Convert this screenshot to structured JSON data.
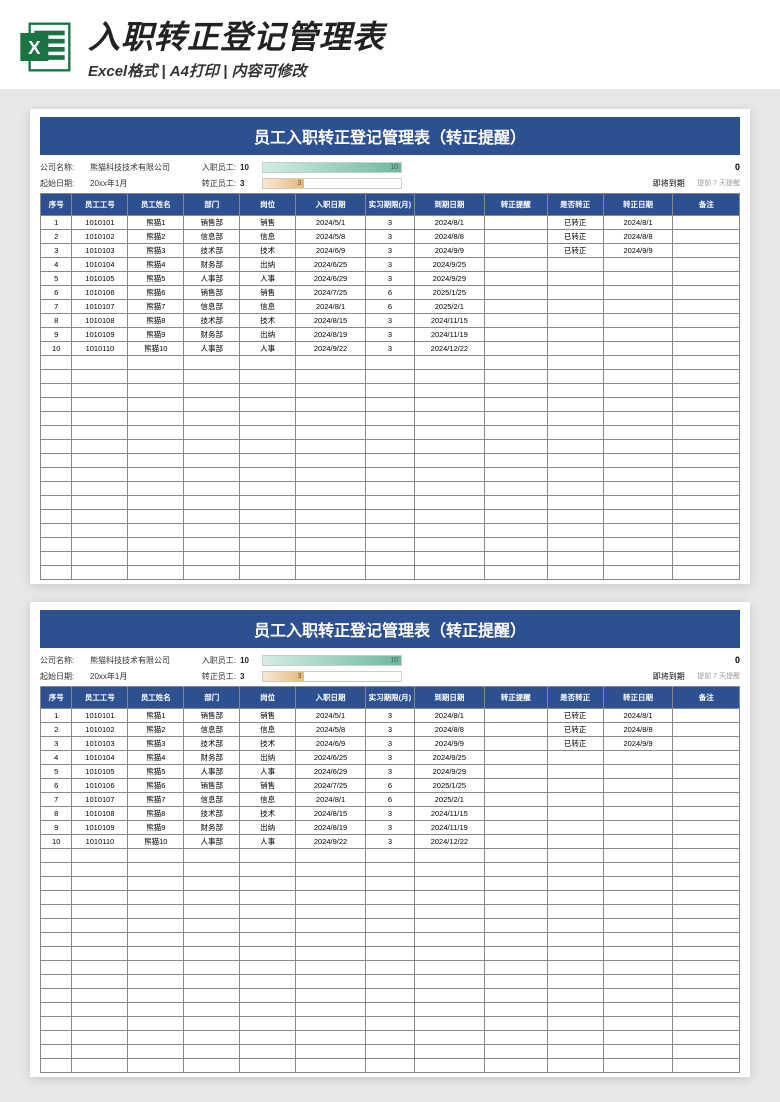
{
  "header": {
    "title": "入职转正登记管理表",
    "subtitle": "Excel格式 | A4打印 | 内容可修改"
  },
  "sheet": {
    "title": "员工入职转正登记管理表（转正提醒）",
    "company_label": "公司名称:",
    "company_value": "熊猫科技技术有限公司",
    "start_label": "起始日期:",
    "start_value": "20xx年1月",
    "entry_label": "入职员工:",
    "entry_count": "10",
    "confirm_label": "转正员工:",
    "confirm_count": "3",
    "bar1_text": "10",
    "bar2_text": "3",
    "bar1_color": "#6db8a0",
    "bar1_width": "100%",
    "bar2_color": "#e8b878",
    "bar2_width": "30%",
    "zero_val": "0",
    "due_label": "即将到期",
    "tip_text": "提前 7 天提醒",
    "columns": [
      "序号",
      "员工工号",
      "员工姓名",
      "部门",
      "岗位",
      "入职日期",
      "实习期限(月)",
      "到期日期",
      "转正提醒",
      "是否转正",
      "转正日期",
      "备注"
    ],
    "rows": [
      [
        "1",
        "1010101",
        "熊猫1",
        "销售部",
        "销售",
        "2024/5/1",
        "3",
        "2024/8/1",
        "",
        "已转正",
        "2024/8/1",
        ""
      ],
      [
        "2",
        "1010102",
        "熊猫2",
        "信息部",
        "信息",
        "2024/5/8",
        "3",
        "2024/8/8",
        "",
        "已转正",
        "2024/8/8",
        ""
      ],
      [
        "3",
        "1010103",
        "熊猫3",
        "技术部",
        "技术",
        "2024/6/9",
        "3",
        "2024/9/9",
        "",
        "已转正",
        "2024/9/9",
        ""
      ],
      [
        "4",
        "1010104",
        "熊猫4",
        "财务部",
        "出纳",
        "2024/6/25",
        "3",
        "2024/9/25",
        "",
        "",
        "",
        ""
      ],
      [
        "5",
        "1010105",
        "熊猫5",
        "人事部",
        "人事",
        "2024/6/29",
        "3",
        "2024/9/29",
        "",
        "",
        "",
        ""
      ],
      [
        "6",
        "1010106",
        "熊猫6",
        "销售部",
        "销售",
        "2024/7/25",
        "6",
        "2025/1/25",
        "",
        "",
        "",
        ""
      ],
      [
        "7",
        "1010107",
        "熊猫7",
        "信息部",
        "信息",
        "2024/8/1",
        "6",
        "2025/2/1",
        "",
        "",
        "",
        ""
      ],
      [
        "8",
        "1010108",
        "熊猫8",
        "技术部",
        "技术",
        "2024/8/15",
        "3",
        "2024/11/15",
        "",
        "",
        "",
        ""
      ],
      [
        "9",
        "1010109",
        "熊猫9",
        "财务部",
        "出纳",
        "2024/8/19",
        "3",
        "2024/11/19",
        "",
        "",
        "",
        ""
      ],
      [
        "10",
        "1010110",
        "熊猫10",
        "人事部",
        "人事",
        "2024/9/22",
        "3",
        "2024/12/22",
        "",
        "",
        "",
        ""
      ]
    ],
    "empty_rows": 16,
    "colors": {
      "header_bg": "#2d5090",
      "border": "#888888",
      "page_bg": "#e8e8e8"
    }
  }
}
